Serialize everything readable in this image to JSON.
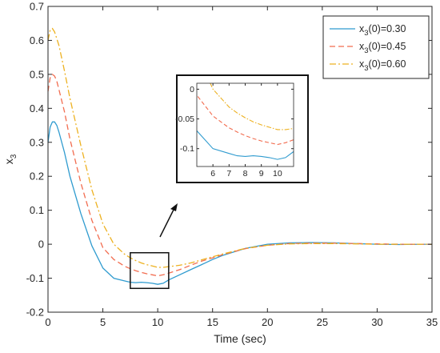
{
  "chart_data": {
    "type": "line",
    "xlabel": "Time (sec)",
    "ylabel": "x",
    "ylabel_subscript": "3",
    "xlim": [
      0,
      35
    ],
    "ylim": [
      -0.2,
      0.7
    ],
    "xticks": [
      0,
      5,
      10,
      15,
      20,
      25,
      30,
      35
    ],
    "yticks": [
      -0.2,
      -0.1,
      0,
      0.1,
      0.2,
      0.3,
      0.4,
      0.5,
      0.6,
      0.7
    ],
    "xtick_labels": [
      "0",
      "5",
      "10",
      "15",
      "20",
      "25",
      "30",
      "35"
    ],
    "ytick_labels": [
      "-0.2",
      "-0.1",
      "0",
      "0.1",
      "0.2",
      "0.3",
      "0.4",
      "0.5",
      "0.6",
      "0.7"
    ],
    "grid": false,
    "legend_position": "top-right",
    "series": [
      {
        "name": "x3(0)=0.30",
        "legend": {
          "pre": "x",
          "sub": "3",
          "post": "(0)=0.30"
        },
        "color": "#2f9bcf",
        "dash": "solid",
        "x": [
          0,
          0.2,
          0.4,
          0.6,
          0.8,
          1,
          1.5,
          2,
          3,
          4,
          5,
          6,
          7,
          7.5,
          8,
          8.5,
          9,
          9.5,
          10,
          10.5,
          11,
          12,
          13,
          14,
          15,
          16,
          18,
          20,
          22,
          24,
          26,
          28,
          30,
          32,
          35
        ],
        "y": [
          0.3,
          0.345,
          0.36,
          0.36,
          0.35,
          0.33,
          0.27,
          0.2,
          0.09,
          -0.005,
          -0.07,
          -0.1,
          -0.108,
          -0.112,
          -0.113,
          -0.112,
          -0.113,
          -0.115,
          -0.118,
          -0.115,
          -0.105,
          -0.09,
          -0.075,
          -0.06,
          -0.045,
          -0.032,
          -0.012,
          0.0,
          0.004,
          0.005,
          0.004,
          0.002,
          0.0,
          -0.001,
          0.0
        ]
      },
      {
        "name": "x3(0)=0.45",
        "legend": {
          "pre": "x",
          "sub": "3",
          "post": "(0)=0.45"
        },
        "color": "#f26c4f",
        "dash": "dashed",
        "x": [
          0,
          0.2,
          0.4,
          0.6,
          0.8,
          1,
          1.5,
          2,
          3,
          4,
          5,
          6,
          7,
          7.5,
          8,
          8.5,
          9,
          9.5,
          10,
          10.5,
          11,
          12,
          13,
          14,
          15,
          16,
          18,
          20,
          22,
          24,
          26,
          28,
          30,
          32,
          35
        ],
        "y": [
          0.45,
          0.49,
          0.5,
          0.495,
          0.48,
          0.455,
          0.39,
          0.31,
          0.18,
          0.07,
          -0.01,
          -0.045,
          -0.065,
          -0.072,
          -0.078,
          -0.083,
          -0.087,
          -0.09,
          -0.093,
          -0.09,
          -0.085,
          -0.075,
          -0.062,
          -0.05,
          -0.04,
          -0.03,
          -0.013,
          -0.003,
          0.002,
          0.003,
          0.003,
          0.002,
          0.001,
          0.0,
          0.0
        ]
      },
      {
        "name": "x3(0)=0.60",
        "legend": {
          "pre": "x",
          "sub": "3",
          "post": "(0)=0.60"
        },
        "color": "#edb120",
        "dash": "dashdot",
        "x": [
          0,
          0.2,
          0.4,
          0.6,
          0.8,
          1,
          1.5,
          2,
          3,
          4,
          5,
          6,
          7,
          7.5,
          8,
          8.5,
          9,
          9.5,
          10,
          10.5,
          11,
          12,
          13,
          14,
          15,
          16,
          18,
          20,
          22,
          24,
          26,
          28,
          30,
          32,
          35
        ],
        "y": [
          0.6,
          0.63,
          0.635,
          0.625,
          0.605,
          0.585,
          0.51,
          0.43,
          0.29,
          0.16,
          0.06,
          0.0,
          -0.03,
          -0.04,
          -0.048,
          -0.055,
          -0.06,
          -0.064,
          -0.068,
          -0.068,
          -0.066,
          -0.062,
          -0.055,
          -0.046,
          -0.037,
          -0.028,
          -0.012,
          -0.003,
          0.001,
          0.002,
          0.002,
          0.001,
          0.0,
          0.0,
          0.0
        ]
      }
    ],
    "inset": {
      "xlim": [
        5,
        11
      ],
      "ylim": [
        -0.13,
        0.01
      ],
      "xticks": [
        6,
        7,
        8,
        9,
        10
      ],
      "xtick_labels": [
        "6",
        "7",
        "8",
        "9",
        "10"
      ],
      "yticks": [
        0,
        -0.05,
        -0.1
      ],
      "ytick_labels": [
        "0",
        "-0.05",
        "-0.1"
      ],
      "zoom_region": {
        "x": [
          7.5,
          11
        ],
        "y": [
          -0.13,
          -0.025
        ]
      }
    }
  }
}
